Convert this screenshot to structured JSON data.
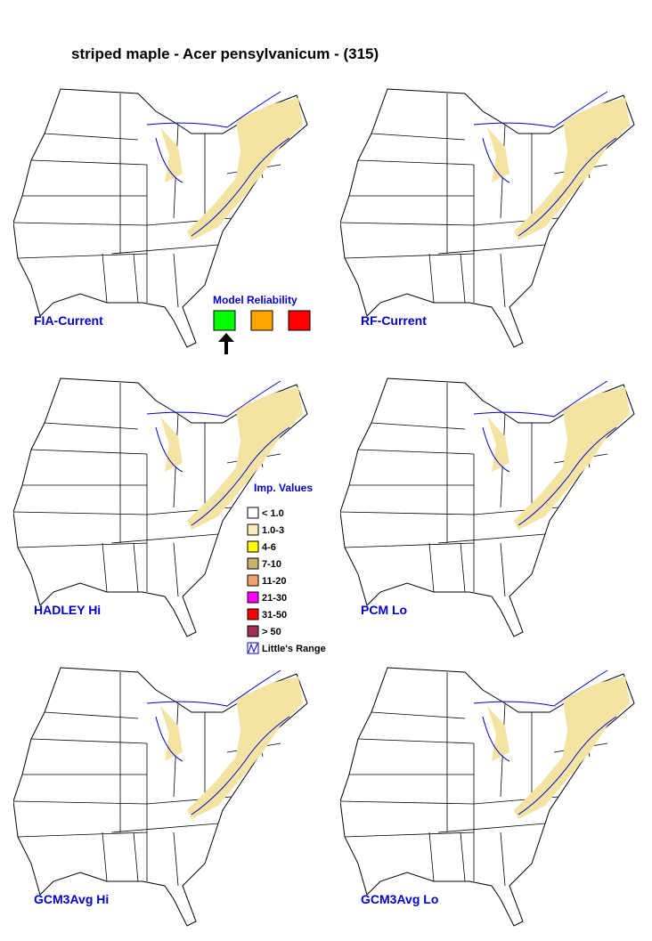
{
  "title": "striped maple - Acer pensylvanicum - (315)",
  "maps": [
    {
      "label": "FIA-Current"
    },
    {
      "label": "RF-Current"
    },
    {
      "label": "HADLEY Hi"
    },
    {
      "label": "PCM Lo"
    },
    {
      "label": "GCM3Avg Hi"
    },
    {
      "label": "GCM3Avg Lo"
    }
  ],
  "model_reliability": {
    "title": "Model Reliability",
    "colors": [
      "#00ff00",
      "#ffa500",
      "#ff0000"
    ]
  },
  "legend": {
    "title": "Imp. Values",
    "items": [
      {
        "label": "< 1.0",
        "color": "#ffffff"
      },
      {
        "label": "1.0-3",
        "color": "#fdebc0"
      },
      {
        "label": "4-6",
        "color": "#ffff00"
      },
      {
        "label": "7-10",
        "color": "#c8b46e"
      },
      {
        "label": "11-20",
        "color": "#f4a070"
      },
      {
        "label": "21-30",
        "color": "#ff00ff"
      },
      {
        "label": "31-50",
        "color": "#ff0000"
      },
      {
        "label": "> 50",
        "color": "#a0305a"
      },
      {
        "label": "Little's Range"
      }
    ]
  }
}
